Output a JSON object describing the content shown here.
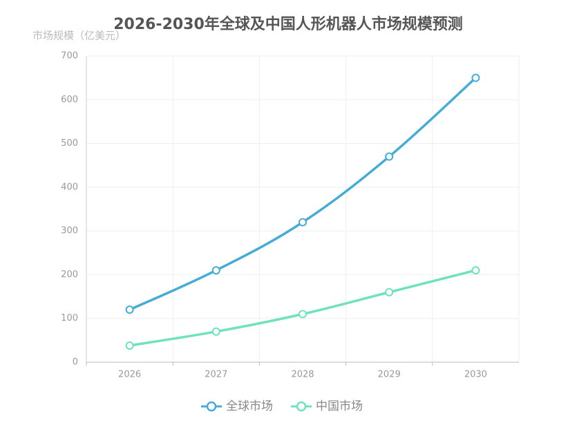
{
  "chart_data": {
    "type": "line",
    "title": "2026-2030年全球及中国人形机器人市场规模预测",
    "y_label": "市场规模（亿美元）",
    "categories": [
      "2026",
      "2027",
      "2028",
      "2029",
      "2030"
    ],
    "series": [
      {
        "name": "全球市场",
        "color": "#45acd6",
        "values": [
          120,
          210,
          320,
          470,
          650
        ]
      },
      {
        "name": "中国市场",
        "color": "#6ee2bd",
        "values": [
          38,
          70,
          110,
          160,
          210
        ]
      }
    ],
    "ylim": [
      0,
      700
    ],
    "yticks": [
      0,
      100,
      200,
      300,
      400,
      500,
      600,
      700
    ],
    "grid": true,
    "smooth": true,
    "legend": "bottom"
  }
}
